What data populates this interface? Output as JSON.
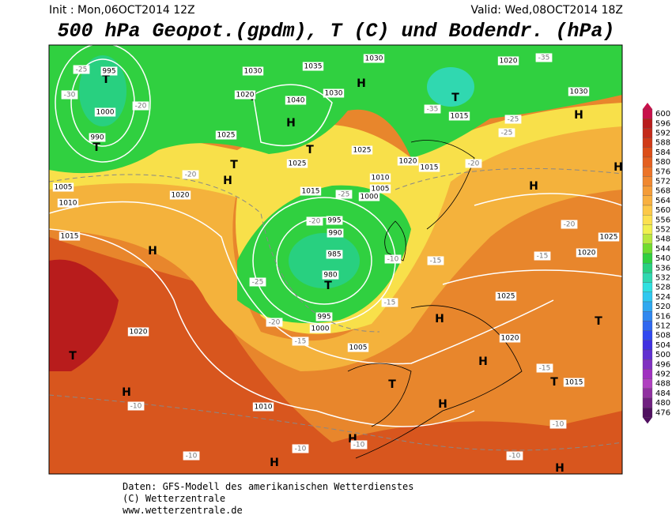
{
  "header": {
    "init": "Init : Mon,06OCT2014 12Z",
    "valid": "Valid: Wed,08OCT2014 18Z",
    "title": "500 hPa Geopot.(gpdm), T (C) und Bodendr. (hPa)"
  },
  "colorbar": {
    "values": [
      600,
      596,
      592,
      588,
      584,
      580,
      576,
      572,
      568,
      564,
      560,
      556,
      552,
      548,
      544,
      540,
      536,
      532,
      528,
      524,
      520,
      516,
      512,
      508,
      504,
      500,
      496,
      492,
      488,
      484,
      480,
      476
    ],
    "colors": [
      "#c8104a",
      "#b81c1c",
      "#c42a1a",
      "#d03a18",
      "#dc4e18",
      "#e46020",
      "#ec7428",
      "#f08830",
      "#f49c38",
      "#f8b040",
      "#fcc848",
      "#fce050",
      "#f0f050",
      "#b8e840",
      "#70dc30",
      "#30d040",
      "#28d080",
      "#30d8b0",
      "#30e0e0",
      "#30c8f0",
      "#30a8f0",
      "#3088f0",
      "#3068f0",
      "#3048f0",
      "#4030e0",
      "#6030d0",
      "#8030c0",
      "#a030c0",
      "#b040c0",
      "#9030a0",
      "#702080",
      "#501060"
    ]
  },
  "map_labels": [
    "T",
    "T",
    "995",
    "1000",
    "990",
    "-25",
    "-30",
    "-20",
    "1005",
    "1010",
    "1015",
    "1020",
    "-20",
    "H",
    "T",
    "H",
    "1020",
    "-10",
    "1030",
    "1035",
    "1040",
    "H",
    "T",
    "1030",
    "1025",
    "T",
    "H",
    "1025",
    "T",
    "1020",
    "1030",
    "H",
    "T",
    "1015",
    "-35",
    "1020",
    "-35",
    "1030",
    "H",
    "-25",
    "1025",
    "1020",
    "1015",
    "1015",
    "1010",
    "1005",
    "1000",
    "995",
    "990",
    "985",
    "980",
    "T",
    "-20",
    "-25",
    "-25",
    "-20",
    "995",
    "1000",
    "-15",
    "-10",
    "-15",
    "-15",
    "1005",
    "1010",
    "T",
    "H",
    "H",
    "H",
    "H",
    "H",
    "-10",
    "-10",
    "-10",
    "1025",
    "1020",
    "-15",
    "T",
    "1015",
    "H",
    "-20",
    "-15",
    "1020",
    "1025",
    "T",
    "-10",
    "-10",
    "H",
    "-20",
    "-25",
    "H"
  ],
  "footer": {
    "line1": "Daten: GFS-Modell des amerikanischen Wetterdienstes",
    "line2": "(C) Wetterzentrale",
    "line3": "www.wetterzentrale.de"
  }
}
